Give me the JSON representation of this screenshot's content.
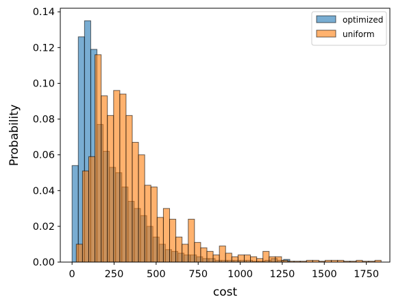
{
  "chart_data": {
    "type": "bar",
    "xlabel": "cost",
    "ylabel": "Probability",
    "xlim": [
      -70,
      1890
    ],
    "ylim": [
      0,
      0.142
    ],
    "xticks": [
      0,
      250,
      500,
      750,
      1000,
      1250,
      1500,
      1750
    ],
    "yticks": [
      0.0,
      0.02,
      0.04,
      0.06,
      0.08,
      0.1,
      0.12,
      0.14
    ],
    "xtick_labels": [
      "0",
      "250",
      "500",
      "750",
      "1000",
      "1250",
      "1500",
      "1750"
    ],
    "ytick_labels": [
      "0.00",
      "0.02",
      "0.04",
      "0.06",
      "0.08",
      "0.10",
      "0.12",
      "0.14"
    ],
    "grid": false,
    "legend_position": "top-right",
    "series": [
      {
        "name": "optimized",
        "color": "#1f77b4",
        "bin_width": 37,
        "bins": [
          [
            0,
            0.054
          ],
          [
            37,
            0.126
          ],
          [
            74,
            0.135
          ],
          [
            111,
            0.119
          ],
          [
            148,
            0.077
          ],
          [
            185,
            0.062
          ],
          [
            222,
            0.053
          ],
          [
            259,
            0.05
          ],
          [
            296,
            0.042
          ],
          [
            333,
            0.034
          ],
          [
            370,
            0.03
          ],
          [
            407,
            0.026
          ],
          [
            444,
            0.02
          ],
          [
            481,
            0.014
          ],
          [
            518,
            0.01
          ],
          [
            555,
            0.007
          ],
          [
            592,
            0.006
          ],
          [
            629,
            0.005
          ],
          [
            666,
            0.004
          ],
          [
            703,
            0.004
          ],
          [
            740,
            0.003
          ],
          [
            777,
            0.002
          ],
          [
            814,
            0.002
          ],
          [
            851,
            0.001
          ],
          [
            888,
            0.001
          ],
          [
            925,
            0.001
          ],
          [
            962,
            0.001
          ],
          [
            999,
            0.001
          ],
          [
            1036,
            0.001
          ],
          [
            1073,
            0.0005
          ],
          [
            1110,
            0.0005
          ],
          [
            1147,
            0.001
          ],
          [
            1184,
            0.002
          ],
          [
            1221,
            0.001
          ],
          [
            1258,
            0.0015
          ]
        ]
      },
      {
        "name": "uniform",
        "color": "#ff7f0e",
        "bin_width": 37,
        "bins": [
          [
            25,
            0.01
          ],
          [
            62,
            0.051
          ],
          [
            99,
            0.059
          ],
          [
            136,
            0.116
          ],
          [
            173,
            0.093
          ],
          [
            210,
            0.082
          ],
          [
            247,
            0.096
          ],
          [
            284,
            0.094
          ],
          [
            321,
            0.082
          ],
          [
            358,
            0.067
          ],
          [
            395,
            0.06
          ],
          [
            432,
            0.043
          ],
          [
            469,
            0.042
          ],
          [
            506,
            0.025
          ],
          [
            543,
            0.03
          ],
          [
            580,
            0.024
          ],
          [
            617,
            0.014
          ],
          [
            654,
            0.01
          ],
          [
            691,
            0.024
          ],
          [
            728,
            0.011
          ],
          [
            765,
            0.008
          ],
          [
            802,
            0.006
          ],
          [
            839,
            0.004
          ],
          [
            876,
            0.009
          ],
          [
            913,
            0.005
          ],
          [
            950,
            0.003
          ],
          [
            987,
            0.004
          ],
          [
            1024,
            0.004
          ],
          [
            1061,
            0.003
          ],
          [
            1098,
            0.002
          ],
          [
            1135,
            0.006
          ],
          [
            1172,
            0.003
          ],
          [
            1209,
            0.003
          ],
          [
            1246,
            0.001
          ],
          [
            1283,
            0.0005
          ],
          [
            1320,
            0.0005
          ],
          [
            1357,
            0.0005
          ],
          [
            1394,
            0.001
          ],
          [
            1431,
            0.001
          ],
          [
            1468,
            0.0005
          ],
          [
            1505,
            0.001
          ],
          [
            1542,
            0.001
          ],
          [
            1579,
            0.001
          ],
          [
            1616,
            0.0005
          ],
          [
            1653,
            0.0005
          ],
          [
            1690,
            0.001
          ],
          [
            1727,
            0.0005
          ],
          [
            1764,
            0.0005
          ],
          [
            1801,
            0.001
          ]
        ]
      }
    ]
  }
}
